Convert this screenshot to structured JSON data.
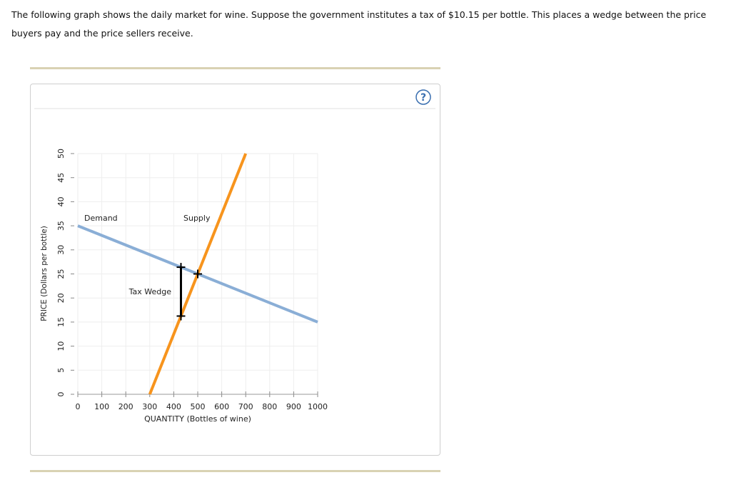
{
  "question": {
    "text": "The following graph shows the daily market for wine. Suppose the government institutes a tax of $10.15 per bottle. This places a wedge between the price buyers pay and the price sellers receive."
  },
  "help_icon": "?",
  "chart_data": {
    "type": "line",
    "x_label": "QUANTITY (Bottles of wine)",
    "y_label": "PRICE (Dollars per bottle)",
    "xlim": [
      0,
      1000
    ],
    "ylim": [
      0,
      50
    ],
    "xticks": [
      0,
      100,
      200,
      300,
      400,
      500,
      600,
      700,
      800,
      900,
      1000
    ],
    "yticks": [
      0,
      5,
      10,
      15,
      20,
      25,
      30,
      35,
      40,
      45,
      50
    ],
    "grid": true,
    "series": [
      {
        "name": "Demand",
        "color": "#8aaed6",
        "x": [
          0,
          1000
        ],
        "values": [
          35,
          15
        ]
      },
      {
        "name": "Supply",
        "color": "#f7941d",
        "x": [
          300,
          700
        ],
        "values": [
          0,
          50
        ]
      },
      {
        "name": "Tax Wedge",
        "color": "#000000",
        "x": [
          430,
          430
        ],
        "values": [
          26.4,
          16.25
        ]
      }
    ],
    "points": [
      {
        "x": 500,
        "y": 25
      }
    ]
  }
}
